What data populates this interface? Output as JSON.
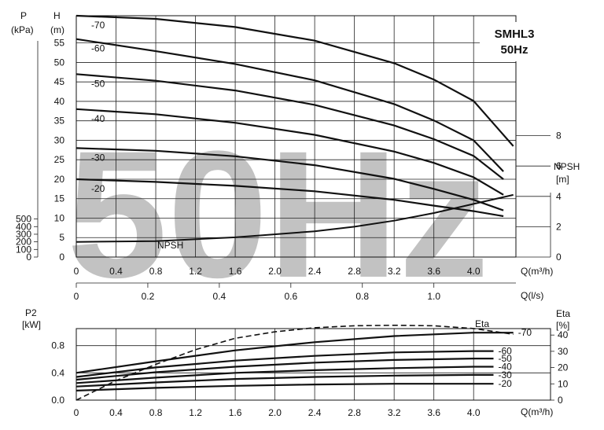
{
  "watermark": "50Hz",
  "chart_data": [
    {
      "type": "line",
      "title": "SMHL3",
      "subtitle": "50Hz",
      "xlabel": "Q(m³/h)",
      "xlabel_secondary": "Q(l/s)",
      "ylabel": "H (m)",
      "ylabel_left_outer": "P (kPa)",
      "ylabel_right": "NPSH [m]",
      "xlim": [
        0,
        4.6
      ],
      "ylim": [
        0,
        62
      ],
      "grid": true,
      "x_ticks": [
        "0",
        "0.4",
        "0.8",
        "1.2",
        "1.6",
        "2.0",
        "2.4",
        "2.8",
        "3.2",
        "3.6",
        "4.0"
      ],
      "y_ticks": [
        "0",
        "5",
        "10",
        "15",
        "20",
        "25",
        "30",
        "35",
        "40",
        "45",
        "50",
        "55"
      ],
      "p_ticks": [
        "0",
        "100",
        "200",
        "300",
        "400",
        "500"
      ],
      "npsh_ticks": [
        "0",
        "2",
        "4",
        "6",
        "8"
      ],
      "ls_ticks": [
        "0",
        "0.2",
        "0.4",
        "0.6",
        "0.8",
        "1.0"
      ],
      "series": [
        {
          "name": "-70",
          "x": [
            0,
            0.8,
            1.6,
            2.4,
            3.2,
            3.6,
            4.0,
            4.4
          ],
          "y": [
            62,
            61.2,
            59.1,
            55.6,
            49.8,
            45.6,
            40.1,
            28.5
          ]
        },
        {
          "name": "-60",
          "x": [
            0,
            0.8,
            1.6,
            2.4,
            3.2,
            3.6,
            4.0,
            4.3
          ],
          "y": [
            56,
            52.9,
            49.6,
            45.4,
            39.3,
            35.1,
            30.0,
            22.0
          ]
        },
        {
          "name": "-50",
          "x": [
            0,
            0.8,
            1.6,
            2.4,
            3.2,
            3.6,
            4.0,
            4.3
          ],
          "y": [
            47,
            45.3,
            42.8,
            39.1,
            33.8,
            30.3,
            26.0,
            20.0
          ]
        },
        {
          "name": "-40",
          "x": [
            0,
            0.8,
            1.6,
            2.4,
            3.2,
            3.6,
            4.0,
            4.3
          ],
          "y": [
            38,
            36.7,
            34.5,
            31.4,
            27.1,
            24.2,
            20.5,
            16.0
          ]
        },
        {
          "name": "-30",
          "x": [
            0,
            0.8,
            1.6,
            2.4,
            3.2,
            3.6,
            4.0,
            4.3
          ],
          "y": [
            28,
            27.3,
            25.9,
            23.6,
            20.1,
            17.5,
            14.7,
            12.0
          ]
        },
        {
          "name": "-20",
          "x": [
            0,
            0.8,
            1.6,
            2.4,
            3.2,
            3.6,
            4.0,
            4.3
          ],
          "y": [
            20,
            19.3,
            18.3,
            16.9,
            14.7,
            13.2,
            11.8,
            10.5
          ]
        }
      ],
      "npsh": {
        "name": "NPSH",
        "x": [
          0,
          0.8,
          1.6,
          2.4,
          2.8,
          3.2,
          3.6,
          4.0,
          4.4
        ],
        "y": [
          1.0,
          1.05,
          1.3,
          1.7,
          2.0,
          2.4,
          2.9,
          3.5,
          4.1
        ]
      }
    },
    {
      "type": "line",
      "title": "",
      "xlabel": "Q(m³/h)",
      "ylabel": "P2 [kW]",
      "ylabel_right": "Eta [%]",
      "xlim": [
        0,
        4.6
      ],
      "ylim": [
        0,
        1.05
      ],
      "grid": true,
      "x_ticks": [
        "0",
        "0.4",
        "0.8",
        "1.2",
        "1.6",
        "2.0",
        "2.4",
        "2.8",
        "3.2",
        "3.6",
        "4.0"
      ],
      "y_ticks": [
        "0.0",
        "0.4",
        "0.8"
      ],
      "eta_ticks": [
        "0",
        "10",
        "20",
        "30",
        "40"
      ],
      "series": [
        {
          "name": "-70",
          "x": [
            0,
            0.8,
            1.6,
            2.4,
            3.2,
            4.0,
            4.4
          ],
          "y": [
            0.4,
            0.57,
            0.73,
            0.85,
            0.94,
            0.99,
            0.99
          ]
        },
        {
          "name": "-60",
          "x": [
            0,
            0.8,
            1.6,
            2.4,
            3.2,
            4.0,
            4.2
          ],
          "y": [
            0.34,
            0.48,
            0.58,
            0.65,
            0.7,
            0.72,
            0.72
          ]
        },
        {
          "name": "-50",
          "x": [
            0,
            0.8,
            1.6,
            2.4,
            3.2,
            4.0,
            4.2
          ],
          "y": [
            0.3,
            0.41,
            0.49,
            0.55,
            0.59,
            0.61,
            0.61
          ]
        },
        {
          "name": "-40",
          "x": [
            0,
            0.8,
            1.6,
            2.4,
            3.2,
            4.0,
            4.2
          ],
          "y": [
            0.25,
            0.33,
            0.4,
            0.44,
            0.47,
            0.49,
            0.49
          ]
        },
        {
          "name": "-30",
          "x": [
            0,
            0.8,
            1.6,
            2.4,
            3.2,
            4.0,
            4.2
          ],
          "y": [
            0.2,
            0.26,
            0.31,
            0.34,
            0.36,
            0.37,
            0.37
          ]
        },
        {
          "name": "-20",
          "x": [
            0,
            0.8,
            1.6,
            2.4,
            3.2,
            4.0,
            4.2
          ],
          "y": [
            0.14,
            0.18,
            0.21,
            0.23,
            0.24,
            0.24,
            0.24
          ]
        }
      ],
      "eta": {
        "name": "Eta",
        "x": [
          0,
          0.4,
          0.8,
          1.2,
          1.6,
          2.0,
          2.4,
          2.8,
          3.2,
          3.6,
          4.0,
          4.4
        ],
        "y": [
          0,
          12,
          22,
          31,
          38,
          42,
          44.5,
          45.7,
          46.0,
          45.7,
          44.0,
          40.5
        ]
      }
    }
  ]
}
